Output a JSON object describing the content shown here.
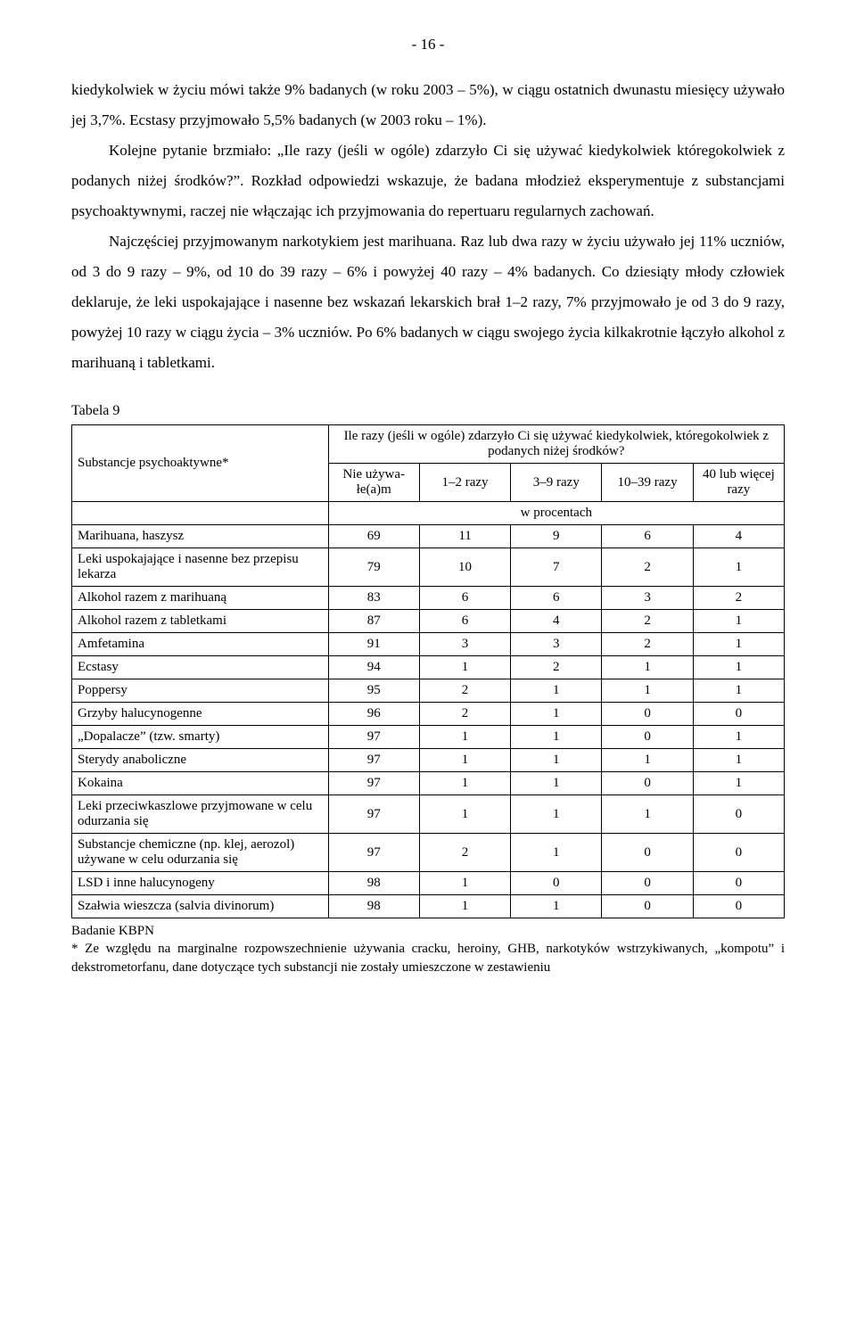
{
  "page_number": "- 16 -",
  "paragraphs": {
    "p1": "kiedykolwiek w życiu mówi także 9% badanych (w roku 2003 – 5%), w ciągu ostatnich dwunastu miesięcy używało jej 3,7%. Ecstasy przyjmowało 5,5% badanych (w 2003 roku – 1%).",
    "p2": "Kolejne pytanie brzmiało: „Ile razy (jeśli w ogóle) zdarzyło Ci się używać kiedykolwiek któregokolwiek z podanych niżej środków?”. Rozkład odpowiedzi wskazuje, że badana młodzież eksperymentuje z substancjami psychoaktywnymi, raczej nie włączając ich przyjmowania do repertuaru regularnych zachowań.",
    "p3": "Najczęściej przyjmowanym narkotykiem jest marihuana. Raz lub dwa razy w życiu używało jej 11% uczniów, od 3 do 9 razy – 9%, od 10 do 39 razy – 6% i powyżej 40 razy – 4% badanych. Co dziesiąty młody człowiek deklaruje, że leki uspokajające i nasenne bez wskazań lekarskich brał 1–2 razy, 7% przyjmowało je od 3 do 9 razy, powyżej 10 razy w ciągu życia – 3% uczniów. Po 6% badanych w ciągu swojego życia kilkakrotnie łączyło alkohol z marihuaną i tabletkami."
  },
  "table_label": "Tabela 9",
  "table": {
    "header_question": "Ile razy (jeśli w ogóle) zdarzyło Ci się używać kiedykolwiek, któregokolwiek z podanych niżej środków?",
    "subs_label": "Substancje psychoaktywne*",
    "col_never": "Nie używa-łe(a)m",
    "col_1_2": "1–2 razy",
    "col_3_9": "3–9 razy",
    "col_10_39": "10–39 razy",
    "col_40": "40 lub więcej razy",
    "w_procentach": "w procentach",
    "rows": [
      {
        "label": "Marihuana, haszysz",
        "v": [
          "69",
          "11",
          "9",
          "6",
          "4"
        ]
      },
      {
        "label": "Leki uspokajające i nasenne bez przepisu lekarza",
        "v": [
          "79",
          "10",
          "7",
          "2",
          "1"
        ]
      },
      {
        "label": "Alkohol razem z marihuaną",
        "v": [
          "83",
          "6",
          "6",
          "3",
          "2"
        ]
      },
      {
        "label": "Alkohol razem z tabletkami",
        "v": [
          "87",
          "6",
          "4",
          "2",
          "1"
        ]
      },
      {
        "label": "Amfetamina",
        "v": [
          "91",
          "3",
          "3",
          "2",
          "1"
        ]
      },
      {
        "label": "Ecstasy",
        "v": [
          "94",
          "1",
          "2",
          "1",
          "1"
        ]
      },
      {
        "label": "Poppersy",
        "v": [
          "95",
          "2",
          "1",
          "1",
          "1"
        ]
      },
      {
        "label": "Grzyby halucynogenne",
        "v": [
          "96",
          "2",
          "1",
          "0",
          "0"
        ]
      },
      {
        "label": "„Dopalacze” (tzw. smarty)",
        "v": [
          "97",
          "1",
          "1",
          "0",
          "1"
        ]
      },
      {
        "label": "Sterydy anaboliczne",
        "v": [
          "97",
          "1",
          "1",
          "1",
          "1"
        ]
      },
      {
        "label": "Kokaina",
        "v": [
          "97",
          "1",
          "1",
          "0",
          "1"
        ]
      },
      {
        "label": "Leki przeciwkaszlowe przyjmowane w celu odurzania się",
        "v": [
          "97",
          "1",
          "1",
          "1",
          "0"
        ]
      },
      {
        "label": "Substancje chemiczne (np. klej, aerozol) używane w celu odurzania się",
        "v": [
          "97",
          "2",
          "1",
          "0",
          "0"
        ]
      },
      {
        "label": "LSD i inne halucynogeny",
        "v": [
          "98",
          "1",
          "0",
          "0",
          "0"
        ]
      },
      {
        "label": "Szałwia wieszcza (salvia divinorum)",
        "v": [
          "98",
          "1",
          "1",
          "0",
          "0"
        ]
      }
    ]
  },
  "footnote": {
    "line1": "Badanie KBPN",
    "line2": "* Ze względu na marginalne rozpowszechnienie używania cracku, heroiny, GHB, narkotyków wstrzykiwanych, „kompotu” i dekstrometorfanu, dane dotyczące tych substancji nie zostały umieszczone w zestawieniu"
  }
}
